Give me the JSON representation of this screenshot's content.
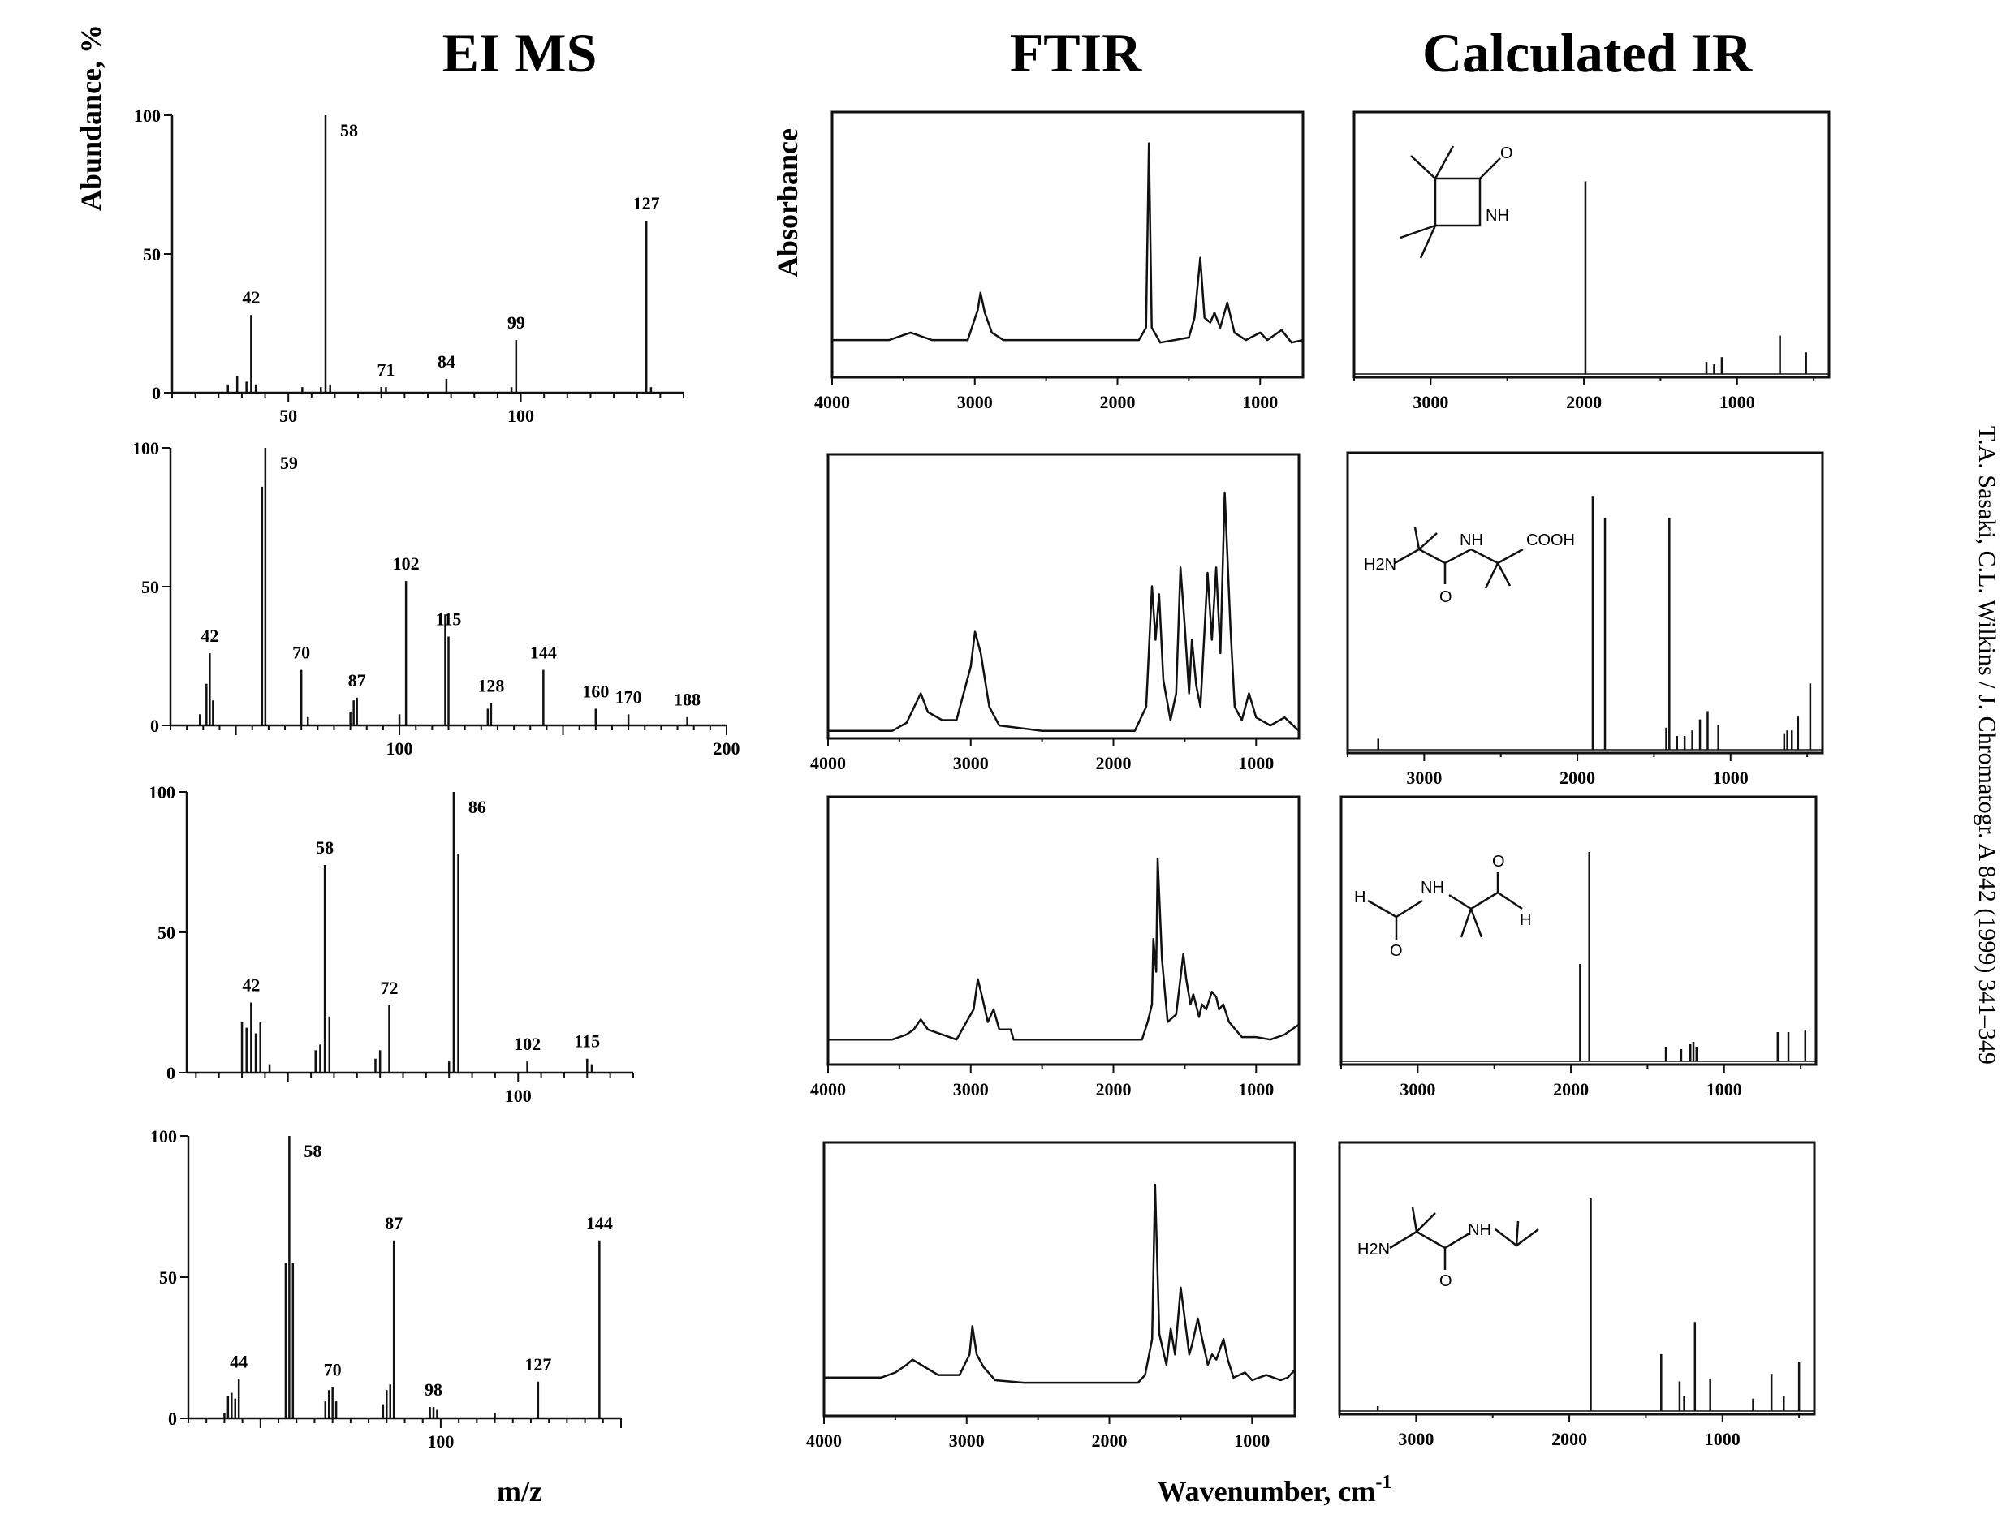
{
  "column_titles": {
    "ms": "EI MS",
    "ftir": "FTIR",
    "calc": "Calculated IR"
  },
  "axis_labels": {
    "ms_y": "Abundance, %",
    "ftir_y": "Absorbance",
    "ms_x": "m/z",
    "ir_x": "Wavenumber, cm",
    "ir_x_sup": "-1"
  },
  "citation": "T.A. Sasaki, C.L. Wilkins / J. Chromatogr. A 842 (1999) 341–349",
  "structures": [
    {
      "labels": [
        "O",
        "NH"
      ]
    },
    {
      "labels": [
        "H2N",
        "NH",
        "COOH",
        "O"
      ]
    },
    {
      "labels": [
        "O",
        "H",
        "NH",
        "H",
        "O"
      ]
    },
    {
      "labels": [
        "H2N",
        "NH",
        "O"
      ]
    }
  ],
  "chart_data": [
    {
      "type": "bar",
      "subtype": "mass-spectrum",
      "row": 1,
      "xlim": [
        25,
        135
      ],
      "ylim": [
        0,
        100
      ],
      "x_ticks": [
        50,
        100
      ],
      "y_ticks": [
        0,
        50,
        100
      ],
      "peaks": [
        [
          37,
          3
        ],
        [
          39,
          6
        ],
        [
          41,
          4
        ],
        [
          42,
          28
        ],
        [
          43,
          3
        ],
        [
          53,
          2
        ],
        [
          57,
          2
        ],
        [
          58,
          100
        ],
        [
          59,
          3
        ],
        [
          70,
          2
        ],
        [
          71,
          2
        ],
        [
          84,
          5
        ],
        [
          98,
          2
        ],
        [
          99,
          19
        ],
        [
          127,
          62
        ],
        [
          128,
          2
        ]
      ],
      "labeled_peaks": [
        42,
        58,
        71,
        84,
        99,
        127
      ]
    },
    {
      "type": "bar",
      "subtype": "mass-spectrum",
      "row": 2,
      "xlim": [
        30,
        200
      ],
      "ylim": [
        0,
        100
      ],
      "x_ticks": [
        100,
        200
      ],
      "y_ticks": [
        0,
        50,
        100
      ],
      "peaks": [
        [
          39,
          4
        ],
        [
          41,
          15
        ],
        [
          42,
          26
        ],
        [
          43,
          9
        ],
        [
          58,
          86
        ],
        [
          59,
          100
        ],
        [
          70,
          20
        ],
        [
          72,
          3
        ],
        [
          85,
          5
        ],
        [
          86,
          9
        ],
        [
          87,
          10
        ],
        [
          100,
          4
        ],
        [
          102,
          52
        ],
        [
          114,
          40
        ],
        [
          115,
          32
        ],
        [
          127,
          6
        ],
        [
          128,
          8
        ],
        [
          144,
          20
        ],
        [
          160,
          6
        ],
        [
          170,
          4
        ],
        [
          188,
          3
        ]
      ],
      "labeled_peaks": [
        42,
        59,
        70,
        87,
        102,
        115,
        128,
        144,
        160,
        170,
        188
      ]
    },
    {
      "type": "bar",
      "subtype": "mass-spectrum",
      "row": 3,
      "xlim": [
        28,
        125
      ],
      "ylim": [
        0,
        100
      ],
      "x_ticks": [
        100
      ],
      "y_ticks": [
        0,
        50,
        100
      ],
      "peaks": [
        [
          40,
          18
        ],
        [
          41,
          16
        ],
        [
          42,
          25
        ],
        [
          43,
          14
        ],
        [
          44,
          18
        ],
        [
          46,
          3
        ],
        [
          56,
          8
        ],
        [
          57,
          10
        ],
        [
          58,
          74
        ],
        [
          59,
          20
        ],
        [
          69,
          5
        ],
        [
          70,
          8
        ],
        [
          72,
          24
        ],
        [
          85,
          4
        ],
        [
          86,
          100
        ],
        [
          87,
          78
        ],
        [
          102,
          4
        ],
        [
          115,
          5
        ],
        [
          116,
          3
        ]
      ],
      "labeled_peaks": [
        42,
        58,
        72,
        86,
        102,
        115
      ]
    },
    {
      "type": "bar",
      "subtype": "mass-spectrum",
      "row": 4,
      "xlim": [
        30,
        150
      ],
      "ylim": [
        0,
        100
      ],
      "x_ticks": [
        100
      ],
      "y_ticks": [
        0,
        50,
        100
      ],
      "peaks": [
        [
          40,
          2
        ],
        [
          41,
          8
        ],
        [
          42,
          9
        ],
        [
          43,
          7
        ],
        [
          44,
          14
        ],
        [
          57,
          55
        ],
        [
          58,
          100
        ],
        [
          59,
          55
        ],
        [
          68,
          6
        ],
        [
          69,
          10
        ],
        [
          70,
          11
        ],
        [
          71,
          6
        ],
        [
          84,
          5
        ],
        [
          85,
          10
        ],
        [
          86,
          12
        ],
        [
          87,
          63
        ],
        [
          97,
          4
        ],
        [
          98,
          4
        ],
        [
          99,
          3
        ],
        [
          115,
          2
        ],
        [
          127,
          13
        ],
        [
          144,
          63
        ]
      ],
      "labeled_peaks": [
        44,
        58,
        70,
        87,
        98,
        127,
        144
      ]
    },
    {
      "type": "line",
      "subtype": "ftir",
      "row": 1,
      "xlim": [
        4000,
        700
      ],
      "x_ticks": [
        4000,
        3000,
        2000,
        1000
      ],
      "points": [
        [
          4000,
          0.13
        ],
        [
          3600,
          0.13
        ],
        [
          3450,
          0.16
        ],
        [
          3300,
          0.13
        ],
        [
          3050,
          0.13
        ],
        [
          2980,
          0.25
        ],
        [
          2960,
          0.32
        ],
        [
          2930,
          0.24
        ],
        [
          2880,
          0.16
        ],
        [
          2800,
          0.13
        ],
        [
          2000,
          0.13
        ],
        [
          1850,
          0.13
        ],
        [
          1800,
          0.18
        ],
        [
          1780,
          0.92
        ],
        [
          1760,
          0.18
        ],
        [
          1700,
          0.12
        ],
        [
          1500,
          0.14
        ],
        [
          1460,
          0.22
        ],
        [
          1420,
          0.46
        ],
        [
          1390,
          0.22
        ],
        [
          1350,
          0.2
        ],
        [
          1320,
          0.24
        ],
        [
          1280,
          0.18
        ],
        [
          1230,
          0.28
        ],
        [
          1180,
          0.16
        ],
        [
          1100,
          0.13
        ],
        [
          1000,
          0.16
        ],
        [
          950,
          0.13
        ],
        [
          850,
          0.17
        ],
        [
          780,
          0.12
        ],
        [
          700,
          0.13
        ]
      ]
    },
    {
      "type": "line",
      "subtype": "ftir",
      "row": 2,
      "xlim": [
        4000,
        700
      ],
      "x_ticks": [
        4000,
        3000,
        2000,
        1000
      ],
      "points": [
        [
          4000,
          0.01
        ],
        [
          3550,
          0.01
        ],
        [
          3450,
          0.04
        ],
        [
          3350,
          0.15
        ],
        [
          3300,
          0.08
        ],
        [
          3200,
          0.05
        ],
        [
          3100,
          0.05
        ],
        [
          3000,
          0.25
        ],
        [
          2970,
          0.38
        ],
        [
          2930,
          0.3
        ],
        [
          2870,
          0.1
        ],
        [
          2800,
          0.03
        ],
        [
          2500,
          0.01
        ],
        [
          1850,
          0.01
        ],
        [
          1770,
          0.1
        ],
        [
          1730,
          0.55
        ],
        [
          1705,
          0.35
        ],
        [
          1680,
          0.52
        ],
        [
          1650,
          0.2
        ],
        [
          1600,
          0.05
        ],
        [
          1560,
          0.15
        ],
        [
          1530,
          0.62
        ],
        [
          1500,
          0.4
        ],
        [
          1470,
          0.15
        ],
        [
          1450,
          0.35
        ],
        [
          1420,
          0.18
        ],
        [
          1390,
          0.1
        ],
        [
          1340,
          0.6
        ],
        [
          1310,
          0.35
        ],
        [
          1280,
          0.62
        ],
        [
          1250,
          0.3
        ],
        [
          1220,
          0.9
        ],
        [
          1180,
          0.4
        ],
        [
          1150,
          0.1
        ],
        [
          1100,
          0.05
        ],
        [
          1050,
          0.15
        ],
        [
          1000,
          0.06
        ],
        [
          900,
          0.03
        ],
        [
          800,
          0.06
        ],
        [
          700,
          0.01
        ]
      ]
    },
    {
      "type": "line",
      "subtype": "ftir",
      "row": 3,
      "xlim": [
        4000,
        700
      ],
      "x_ticks": [
        4000,
        3000,
        2000,
        1000
      ],
      "points": [
        [
          4000,
          0.08
        ],
        [
          3550,
          0.08
        ],
        [
          3450,
          0.1
        ],
        [
          3400,
          0.12
        ],
        [
          3350,
          0.16
        ],
        [
          3300,
          0.12
        ],
        [
          3100,
          0.08
        ],
        [
          2980,
          0.2
        ],
        [
          2950,
          0.32
        ],
        [
          2920,
          0.25
        ],
        [
          2880,
          0.15
        ],
        [
          2840,
          0.2
        ],
        [
          2800,
          0.12
        ],
        [
          2720,
          0.12
        ],
        [
          2700,
          0.08
        ],
        [
          1800,
          0.08
        ],
        [
          1760,
          0.15
        ],
        [
          1730,
          0.22
        ],
        [
          1720,
          0.48
        ],
        [
          1700,
          0.35
        ],
        [
          1690,
          0.8
        ],
        [
          1660,
          0.4
        ],
        [
          1620,
          0.15
        ],
        [
          1560,
          0.18
        ],
        [
          1510,
          0.42
        ],
        [
          1490,
          0.32
        ],
        [
          1460,
          0.22
        ],
        [
          1440,
          0.26
        ],
        [
          1400,
          0.17
        ],
        [
          1380,
          0.22
        ],
        [
          1350,
          0.2
        ],
        [
          1310,
          0.27
        ],
        [
          1280,
          0.25
        ],
        [
          1260,
          0.2
        ],
        [
          1230,
          0.22
        ],
        [
          1190,
          0.15
        ],
        [
          1100,
          0.09
        ],
        [
          1000,
          0.09
        ],
        [
          900,
          0.08
        ],
        [
          800,
          0.1
        ],
        [
          700,
          0.14
        ]
      ]
    },
    {
      "type": "line",
      "subtype": "ftir",
      "row": 4,
      "xlim": [
        4000,
        700
      ],
      "x_ticks": [
        4000,
        3000,
        2000,
        1000
      ],
      "points": [
        [
          4000,
          0.13
        ],
        [
          3600,
          0.13
        ],
        [
          3500,
          0.15
        ],
        [
          3420,
          0.18
        ],
        [
          3380,
          0.2
        ],
        [
          3320,
          0.18
        ],
        [
          3200,
          0.14
        ],
        [
          3050,
          0.14
        ],
        [
          2980,
          0.22
        ],
        [
          2960,
          0.33
        ],
        [
          2930,
          0.22
        ],
        [
          2880,
          0.17
        ],
        [
          2800,
          0.12
        ],
        [
          2600,
          0.11
        ],
        [
          1800,
          0.11
        ],
        [
          1750,
          0.14
        ],
        [
          1700,
          0.28
        ],
        [
          1680,
          0.88
        ],
        [
          1650,
          0.3
        ],
        [
          1600,
          0.18
        ],
        [
          1570,
          0.32
        ],
        [
          1540,
          0.22
        ],
        [
          1500,
          0.48
        ],
        [
          1470,
          0.35
        ],
        [
          1440,
          0.22
        ],
        [
          1420,
          0.26
        ],
        [
          1380,
          0.36
        ],
        [
          1350,
          0.28
        ],
        [
          1310,
          0.18
        ],
        [
          1280,
          0.22
        ],
        [
          1250,
          0.2
        ],
        [
          1200,
          0.28
        ],
        [
          1170,
          0.2
        ],
        [
          1130,
          0.13
        ],
        [
          1050,
          0.15
        ],
        [
          1000,
          0.12
        ],
        [
          900,
          0.14
        ],
        [
          800,
          0.12
        ],
        [
          750,
          0.13
        ],
        [
          700,
          0.16
        ]
      ]
    },
    {
      "type": "bar",
      "subtype": "calculated-ir",
      "row": 1,
      "xlim": [
        3500,
        400
      ],
      "x_ticks": [
        3000,
        2000,
        1000
      ],
      "peaks": [
        [
          1990,
          0.8
        ],
        [
          1200,
          0.05
        ],
        [
          1150,
          0.04
        ],
        [
          1100,
          0.07
        ],
        [
          720,
          0.16
        ],
        [
          550,
          0.09
        ]
      ]
    },
    {
      "type": "bar",
      "subtype": "calculated-ir",
      "row": 2,
      "xlim": [
        3500,
        400
      ],
      "x_ticks": [
        3000,
        2000,
        1000
      ],
      "peaks": [
        [
          3300,
          0.04
        ],
        [
          1900,
          0.92
        ],
        [
          1820,
          0.84
        ],
        [
          1420,
          0.08
        ],
        [
          1400,
          0.84
        ],
        [
          1350,
          0.05
        ],
        [
          1300,
          0.05
        ],
        [
          1250,
          0.07
        ],
        [
          1200,
          0.11
        ],
        [
          1150,
          0.14
        ],
        [
          1080,
          0.09
        ],
        [
          650,
          0.06
        ],
        [
          630,
          0.07
        ],
        [
          600,
          0.07
        ],
        [
          560,
          0.12
        ],
        [
          480,
          0.24
        ]
      ]
    },
    {
      "type": "bar",
      "subtype": "calculated-ir",
      "row": 3,
      "xlim": [
        3500,
        400
      ],
      "x_ticks": [
        3000,
        2000,
        1000
      ],
      "peaks": [
        [
          1940,
          0.4
        ],
        [
          1880,
          0.86
        ],
        [
          1380,
          0.06
        ],
        [
          1280,
          0.05
        ],
        [
          1220,
          0.07
        ],
        [
          1200,
          0.08
        ],
        [
          1180,
          0.06
        ],
        [
          650,
          0.12
        ],
        [
          580,
          0.12
        ],
        [
          470,
          0.13
        ]
      ]
    },
    {
      "type": "bar",
      "subtype": "calculated-ir",
      "row": 4,
      "xlim": [
        3500,
        400
      ],
      "x_ticks": [
        3000,
        2000,
        1000
      ],
      "peaks": [
        [
          3250,
          0.02
        ],
        [
          1860,
          0.86
        ],
        [
          1400,
          0.23
        ],
        [
          1280,
          0.12
        ],
        [
          1250,
          0.06
        ],
        [
          1180,
          0.36
        ],
        [
          1080,
          0.13
        ],
        [
          800,
          0.05
        ],
        [
          680,
          0.15
        ],
        [
          600,
          0.06
        ],
        [
          500,
          0.2
        ]
      ]
    }
  ]
}
